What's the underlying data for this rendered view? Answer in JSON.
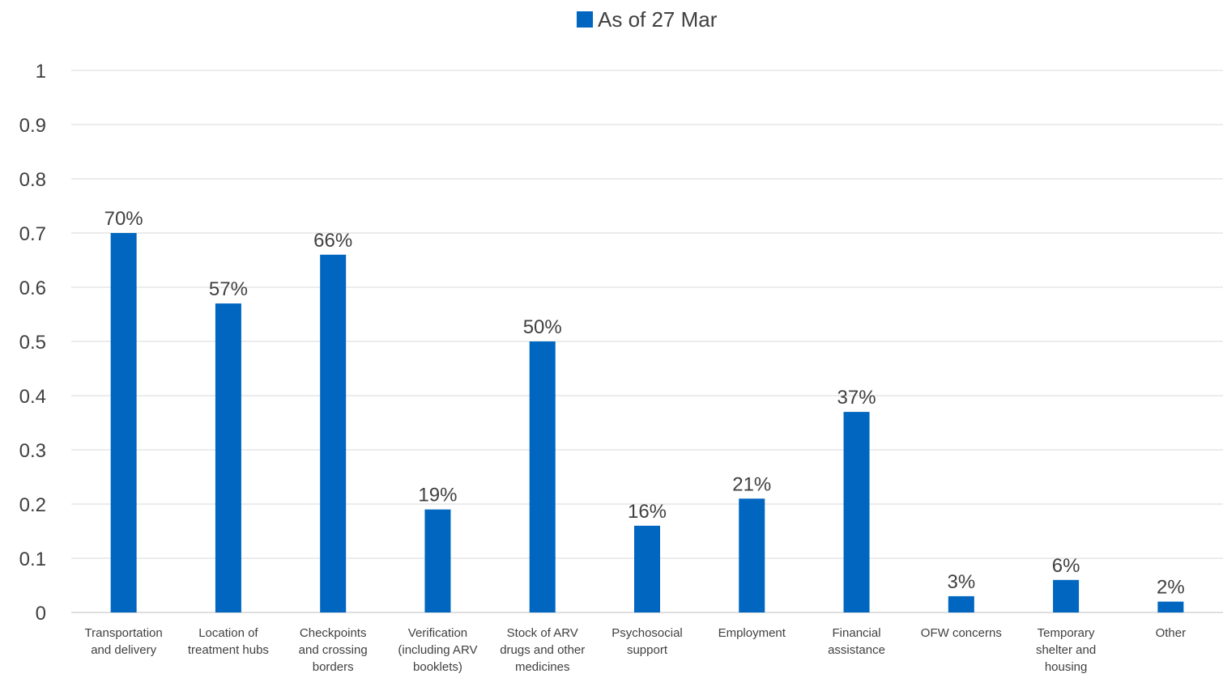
{
  "chart_data": {
    "type": "bar",
    "title": "",
    "xlabel": "",
    "ylabel": "",
    "ylim": [
      0,
      1
    ],
    "yticks": [
      "0",
      "0.1",
      "0.2",
      "0.3",
      "0.4",
      "0.5",
      "0.6",
      "0.7",
      "0.8",
      "0.9",
      "1"
    ],
    "grid": true,
    "legend_position": "top-center",
    "color": "#0066c0",
    "categories": [
      [
        "Transportation",
        "and delivery"
      ],
      [
        "Location of",
        "treatment hubs"
      ],
      [
        "Checkpoints",
        "and crossing",
        "borders"
      ],
      [
        "Verification",
        "(including ARV",
        "booklets)"
      ],
      [
        "Stock of ARV",
        "drugs and other",
        "medicines"
      ],
      [
        "Psychosocial",
        "support"
      ],
      [
        "Employment"
      ],
      [
        "Financial",
        "assistance"
      ],
      [
        "OFW concerns"
      ],
      [
        "Temporary",
        "shelter and",
        "housing"
      ],
      [
        "Other"
      ]
    ],
    "series": [
      {
        "name": "As of 27 Mar",
        "values": [
          0.7,
          0.57,
          0.66,
          0.19,
          0.5,
          0.16,
          0.21,
          0.37,
          0.03,
          0.06,
          0.02
        ],
        "labels": [
          "70%",
          "57%",
          "66%",
          "19%",
          "50%",
          "16%",
          "21%",
          "37%",
          "3%",
          "6%",
          "2%"
        ]
      }
    ]
  }
}
